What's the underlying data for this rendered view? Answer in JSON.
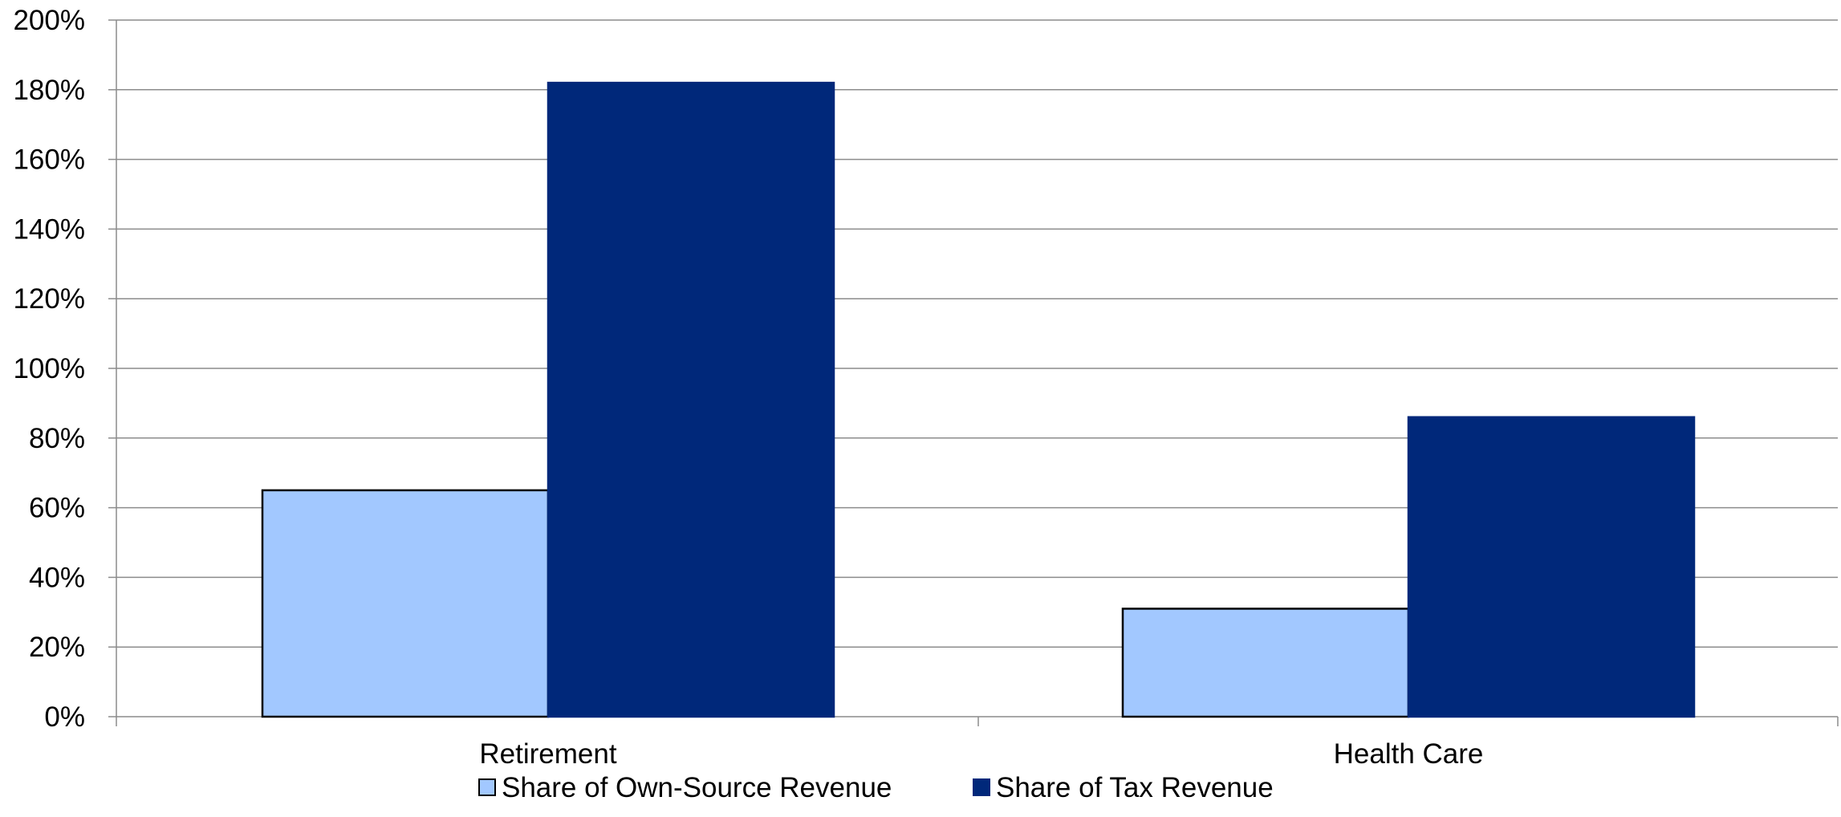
{
  "chart_data": {
    "type": "bar",
    "categories": [
      "Retirement",
      "Health Care"
    ],
    "series": [
      {
        "name": "Share of Own-Source Revenue",
        "values": [
          65,
          31
        ],
        "color": "#a2c8ff",
        "stroke": "#000000"
      },
      {
        "name": "Share of Tax Revenue",
        "values": [
          182,
          86
        ],
        "color": "#00287a",
        "stroke": "#00287a"
      }
    ],
    "value_unit": "%",
    "y_ticks": [
      "0%",
      "20%",
      "40%",
      "60%",
      "80%",
      "100%",
      "120%",
      "140%",
      "160%",
      "180%",
      "200%"
    ],
    "ylim": [
      0,
      200
    ],
    "grid": true,
    "legend_position": "bottom"
  }
}
